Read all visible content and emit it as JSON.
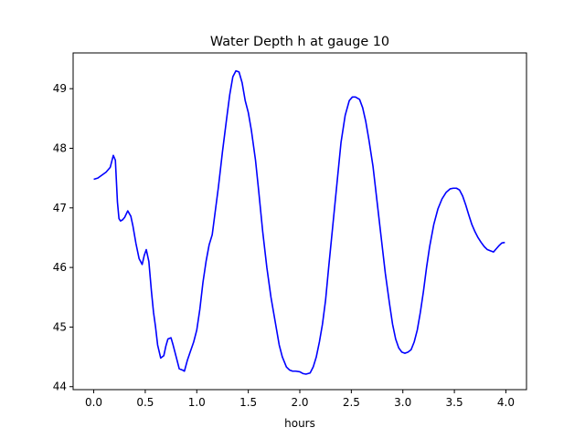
{
  "chart_data": {
    "type": "line",
    "title": "Water Depth h at gauge 10",
    "xlabel": "hours",
    "ylabel": "",
    "xlim": [
      -0.2,
      4.2
    ],
    "ylim": [
      43.95,
      49.6
    ],
    "xticks": [
      0.0,
      0.5,
      1.0,
      1.5,
      2.0,
      2.5,
      3.0,
      3.5,
      4.0
    ],
    "xtick_labels": [
      "0.0",
      "0.5",
      "1.0",
      "1.5",
      "2.0",
      "2.5",
      "3.0",
      "3.5",
      "4.0"
    ],
    "yticks": [
      44,
      45,
      46,
      47,
      48,
      49
    ],
    "ytick_labels": [
      "44",
      "45",
      "46",
      "47",
      "48",
      "49"
    ],
    "grid": false,
    "line_color": "#0000ff",
    "series": [
      {
        "x": [
          0.0,
          0.04,
          0.08,
          0.12,
          0.16,
          0.19,
          0.21,
          0.23,
          0.245,
          0.26,
          0.28,
          0.3,
          0.33,
          0.36,
          0.38,
          0.41,
          0.44,
          0.47,
          0.49,
          0.51,
          0.535,
          0.56,
          0.58,
          0.6,
          0.62,
          0.65,
          0.68,
          0.7,
          0.72,
          0.75,
          0.77,
          0.8,
          0.83,
          0.86,
          0.88,
          0.91,
          0.94,
          0.97,
          1.0,
          1.03,
          1.06,
          1.09,
          1.12,
          1.15,
          1.18,
          1.21,
          1.25,
          1.29,
          1.32,
          1.35,
          1.38,
          1.41,
          1.44,
          1.47,
          1.5,
          1.53,
          1.57,
          1.6,
          1.64,
          1.68,
          1.72,
          1.76,
          1.8,
          1.83,
          1.87,
          1.9,
          1.93,
          1.96,
          2.0,
          2.03,
          2.06,
          2.1,
          2.13,
          2.16,
          2.19,
          2.22,
          2.25,
          2.28,
          2.32,
          2.36,
          2.4,
          2.44,
          2.48,
          2.51,
          2.54,
          2.58,
          2.61,
          2.64,
          2.67,
          2.71,
          2.75,
          2.79,
          2.83,
          2.87,
          2.9,
          2.93,
          2.96,
          2.99,
          3.02,
          3.05,
          3.08,
          3.11,
          3.14,
          3.17,
          3.2,
          3.23,
          3.26,
          3.3,
          3.34,
          3.38,
          3.42,
          3.46,
          3.49,
          3.52,
          3.55,
          3.58,
          3.61,
          3.64,
          3.67,
          3.7,
          3.73,
          3.76,
          3.79,
          3.82,
          3.85,
          3.88,
          3.9,
          3.93,
          3.96,
          3.99
        ],
        "y": [
          47.48,
          47.5,
          47.55,
          47.6,
          47.68,
          47.88,
          47.8,
          47.1,
          46.82,
          46.78,
          46.8,
          46.84,
          46.95,
          46.86,
          46.7,
          46.4,
          46.15,
          46.05,
          46.2,
          46.3,
          46.1,
          45.6,
          45.25,
          45.0,
          44.7,
          44.48,
          44.52,
          44.68,
          44.8,
          44.82,
          44.7,
          44.5,
          44.3,
          44.28,
          44.26,
          44.45,
          44.6,
          44.75,
          44.95,
          45.3,
          45.75,
          46.1,
          46.38,
          46.55,
          46.95,
          47.35,
          47.95,
          48.5,
          48.9,
          49.2,
          49.3,
          49.28,
          49.1,
          48.8,
          48.6,
          48.3,
          47.8,
          47.3,
          46.6,
          46.0,
          45.5,
          45.1,
          44.7,
          44.5,
          44.33,
          44.28,
          44.26,
          44.26,
          44.25,
          44.22,
          44.21,
          44.23,
          44.33,
          44.5,
          44.75,
          45.05,
          45.45,
          46.0,
          46.7,
          47.4,
          48.1,
          48.55,
          48.8,
          48.86,
          48.86,
          48.82,
          48.68,
          48.45,
          48.15,
          47.7,
          47.1,
          46.5,
          45.9,
          45.4,
          45.05,
          44.8,
          44.65,
          44.58,
          44.56,
          44.58,
          44.62,
          44.75,
          44.95,
          45.25,
          45.6,
          46.0,
          46.35,
          46.72,
          46.98,
          47.15,
          47.26,
          47.32,
          47.33,
          47.33,
          47.3,
          47.2,
          47.05,
          46.88,
          46.72,
          46.6,
          46.5,
          46.42,
          46.35,
          46.3,
          46.28,
          46.26,
          46.3,
          46.36,
          46.41,
          46.42
        ]
      }
    ]
  }
}
